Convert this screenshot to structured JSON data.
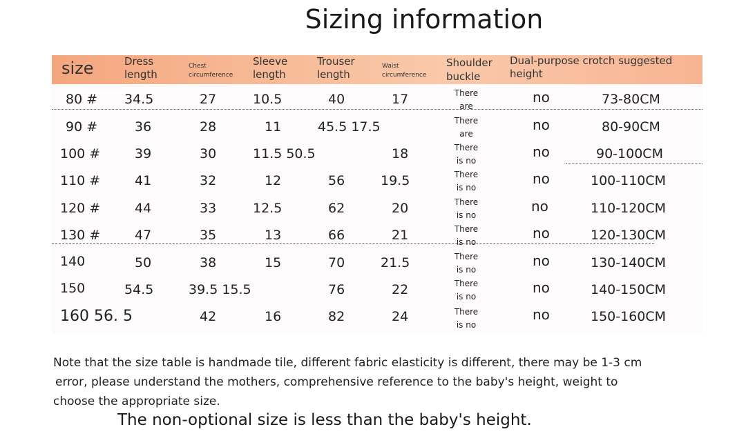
{
  "title": "Sizing information",
  "header": {
    "size": "size",
    "dress_length": [
      "Dress",
      "length"
    ],
    "chest": [
      "Chest",
      "circumference"
    ],
    "sleeve_length": [
      "Sleeve",
      "length"
    ],
    "trouser_length": [
      "Trouser",
      "length"
    ],
    "waist": [
      "Waist",
      "circumference"
    ],
    "shoulder_buckle": [
      "Shoulder",
      "buckle"
    ],
    "crotch_height": [
      "Dual-purpose crotch suggested",
      "height"
    ]
  },
  "rows": [
    {
      "size": "80 #",
      "dress": "34.5",
      "chest": "27",
      "sleeve": "10.5",
      "trouser": "40",
      "waist": "17",
      "buckle": [
        "There",
        "are"
      ],
      "crotch": "no",
      "height": "73-80CM"
    },
    {
      "size": "90 #",
      "dress": "36",
      "chest": "28",
      "sleeve": "11",
      "trouser": "45.5 17.5",
      "waist": "",
      "buckle": [
        "There",
        "are"
      ],
      "crotch": "no",
      "height": "80-90CM"
    },
    {
      "size": "100 #",
      "dress": "39",
      "chest": "30",
      "sleeve": "11.5 50.5",
      "trouser": "",
      "waist": "18",
      "buckle": [
        "There",
        "is no"
      ],
      "crotch": "no",
      "height": "90-100CM"
    },
    {
      "size": "110 #",
      "dress": "41",
      "chest": "32",
      "sleeve": "12",
      "trouser": "56",
      "waist": "19.5",
      "buckle": [
        "There",
        "is no"
      ],
      "crotch": "no",
      "height": "100-110CM"
    },
    {
      "size": "120 #",
      "dress": "44",
      "chest": "33",
      "sleeve": "12.5",
      "trouser": "62",
      "waist": "20",
      "buckle": [
        "There",
        "is no"
      ],
      "crotch": "no",
      "height": "110-120CM"
    },
    {
      "size": "130 #",
      "dress": "47",
      "chest": "35",
      "sleeve": "13",
      "trouser": "66",
      "waist": "21",
      "buckle": [
        "There",
        "is no"
      ],
      "crotch": "no",
      "height": "120-130CM"
    },
    {
      "size": "140",
      "dress": "50",
      "chest": "38",
      "sleeve": "15",
      "trouser": "70",
      "waist": "21.5",
      "buckle": [
        "There",
        "is no"
      ],
      "crotch": "no",
      "height": "130-140CM"
    },
    {
      "size": "150",
      "dress": "54.5",
      "chest": "39.5 15.5",
      "sleeve": "",
      "trouser": "76",
      "waist": "22",
      "buckle": [
        "There",
        "is no"
      ],
      "crotch": "no",
      "height": "140-150CM"
    },
    {
      "size": "160 56. 5",
      "dress": "",
      "chest": "42",
      "sleeve": "16",
      "trouser": "82",
      "waist": "24",
      "buckle": [
        "There",
        "is no"
      ],
      "crotch": "no",
      "height": "150-160CM"
    }
  ],
  "note": [
    "Note that the size table is handmade tile, different fabric elasticity is different, there may be 1-3 cm",
    "error, please understand the mothers, comprehensive reference to the baby's height, weight to",
    "choose the appropriate size."
  ],
  "footer": "The non-optional size is less than the baby's height.",
  "colors": {
    "header_gradient_start": "#f4a67e",
    "header_gradient_end": "#f7b493"
  }
}
